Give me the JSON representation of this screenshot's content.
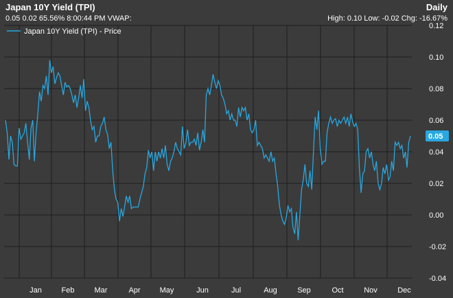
{
  "header": {
    "title": "Japan 10Y Yield (TPI)",
    "quote_line": "0.05 0.02 65.56% 8:00:44 PM VWAP:",
    "frequency": "Daily",
    "stats_line": "High: 0.10 Low: -0.02 Chg: -16.67%"
  },
  "colors": {
    "background": "#3b3b3b",
    "line": "#29a8e0",
    "grid": "#000000",
    "last_badge": "#29a8e0"
  },
  "chart_data": {
    "type": "line",
    "legend": "Japan 10Y Yield (TPI) - Price",
    "legend_position": "top-left",
    "grid": true,
    "ylim": [
      -0.04,
      0.12
    ],
    "yticks": [
      "0.12",
      "0.10",
      "0.08",
      "0.06",
      "0.04",
      "0.02",
      "0.00",
      "-0.02",
      "-0.04"
    ],
    "ytick_values": [
      0.12,
      0.1,
      0.08,
      0.06,
      0.04,
      0.02,
      0.0,
      -0.02,
      -0.04
    ],
    "months": [
      "Jan",
      "Feb",
      "Mar",
      "Apr",
      "May",
      "Jun",
      "Jul",
      "Aug",
      "Sep",
      "Oct",
      "Nov",
      "Dec"
    ],
    "last_value": 0.05,
    "last_label": "0.05",
    "series": [
      {
        "values": [
          0.06,
          0.052,
          0.035,
          0.05,
          0.046,
          0.032,
          0.031,
          0.031,
          0.055,
          0.048,
          0.05,
          0.052,
          0.058,
          0.046,
          0.035,
          0.055,
          0.06,
          0.034,
          0.052,
          0.064,
          0.078,
          0.072,
          0.082,
          0.08,
          0.088,
          0.076,
          0.098,
          0.09,
          0.094,
          0.083,
          0.087,
          0.09,
          0.088,
          0.082,
          0.076,
          0.084,
          0.081,
          0.082,
          0.08,
          0.076,
          0.071,
          0.076,
          0.068,
          0.074,
          0.082,
          0.074,
          0.086,
          0.066,
          0.072,
          0.068,
          0.06,
          0.054,
          0.056,
          0.046,
          0.05,
          0.05,
          0.056,
          0.058,
          0.062,
          0.054,
          0.051,
          0.042,
          0.046,
          0.028,
          0.016,
          0.01,
          0.008,
          -0.004,
          0.004,
          -0.001,
          0.005,
          0.012,
          0.008,
          0.012,
          0.004,
          0.005,
          0.005,
          0.005,
          0.005,
          0.01,
          0.014,
          0.018,
          0.026,
          0.03,
          0.041,
          0.036,
          0.04,
          0.028,
          0.04,
          0.034,
          0.04,
          0.036,
          0.042,
          0.036,
          0.044,
          0.032,
          0.028,
          0.034,
          0.036,
          0.04,
          0.046,
          0.042,
          0.04,
          0.038,
          0.056,
          0.042,
          0.046,
          0.054,
          0.044,
          0.046,
          0.046,
          0.048,
          0.044,
          0.052,
          0.041,
          0.046,
          0.054,
          0.046,
          0.076,
          0.08,
          0.076,
          0.082,
          0.089,
          0.084,
          0.08,
          0.085,
          0.082,
          0.076,
          0.074,
          0.07,
          0.064,
          0.066,
          0.06,
          0.064,
          0.06,
          0.06,
          0.056,
          0.068,
          0.062,
          0.068,
          0.066,
          0.068,
          0.06,
          0.064,
          0.054,
          0.052,
          0.054,
          0.06,
          0.044,
          0.046,
          0.044,
          0.042,
          0.036,
          0.038,
          0.036,
          0.034,
          0.04,
          0.034,
          0.036,
          0.026,
          0.018,
          0.006,
          0.0,
          -0.004,
          -0.006,
          -0.002,
          0.006,
          0.002,
          0.004,
          -0.008,
          -0.012,
          0.002,
          -0.016,
          0.0,
          0.016,
          0.022,
          0.032,
          0.02,
          0.018,
          0.028,
          0.016,
          0.04,
          0.062,
          0.054,
          0.066,
          0.042,
          0.032,
          0.034,
          0.034,
          0.052,
          0.058,
          0.062,
          0.058,
          0.06,
          0.061,
          0.056,
          0.06,
          0.058,
          0.06,
          0.062,
          0.058,
          0.062,
          0.056,
          0.064,
          0.059,
          0.056,
          0.058,
          0.054,
          0.03,
          0.014,
          0.026,
          0.028,
          0.04,
          0.042,
          0.036,
          0.04,
          0.032,
          0.028,
          0.034,
          0.02,
          0.016,
          0.02,
          0.03,
          0.026,
          0.032,
          0.022,
          0.024,
          0.034,
          0.028,
          0.046,
          0.044,
          0.046,
          0.042,
          0.044,
          0.036,
          0.04,
          0.03,
          0.046,
          0.05
        ]
      }
    ]
  }
}
